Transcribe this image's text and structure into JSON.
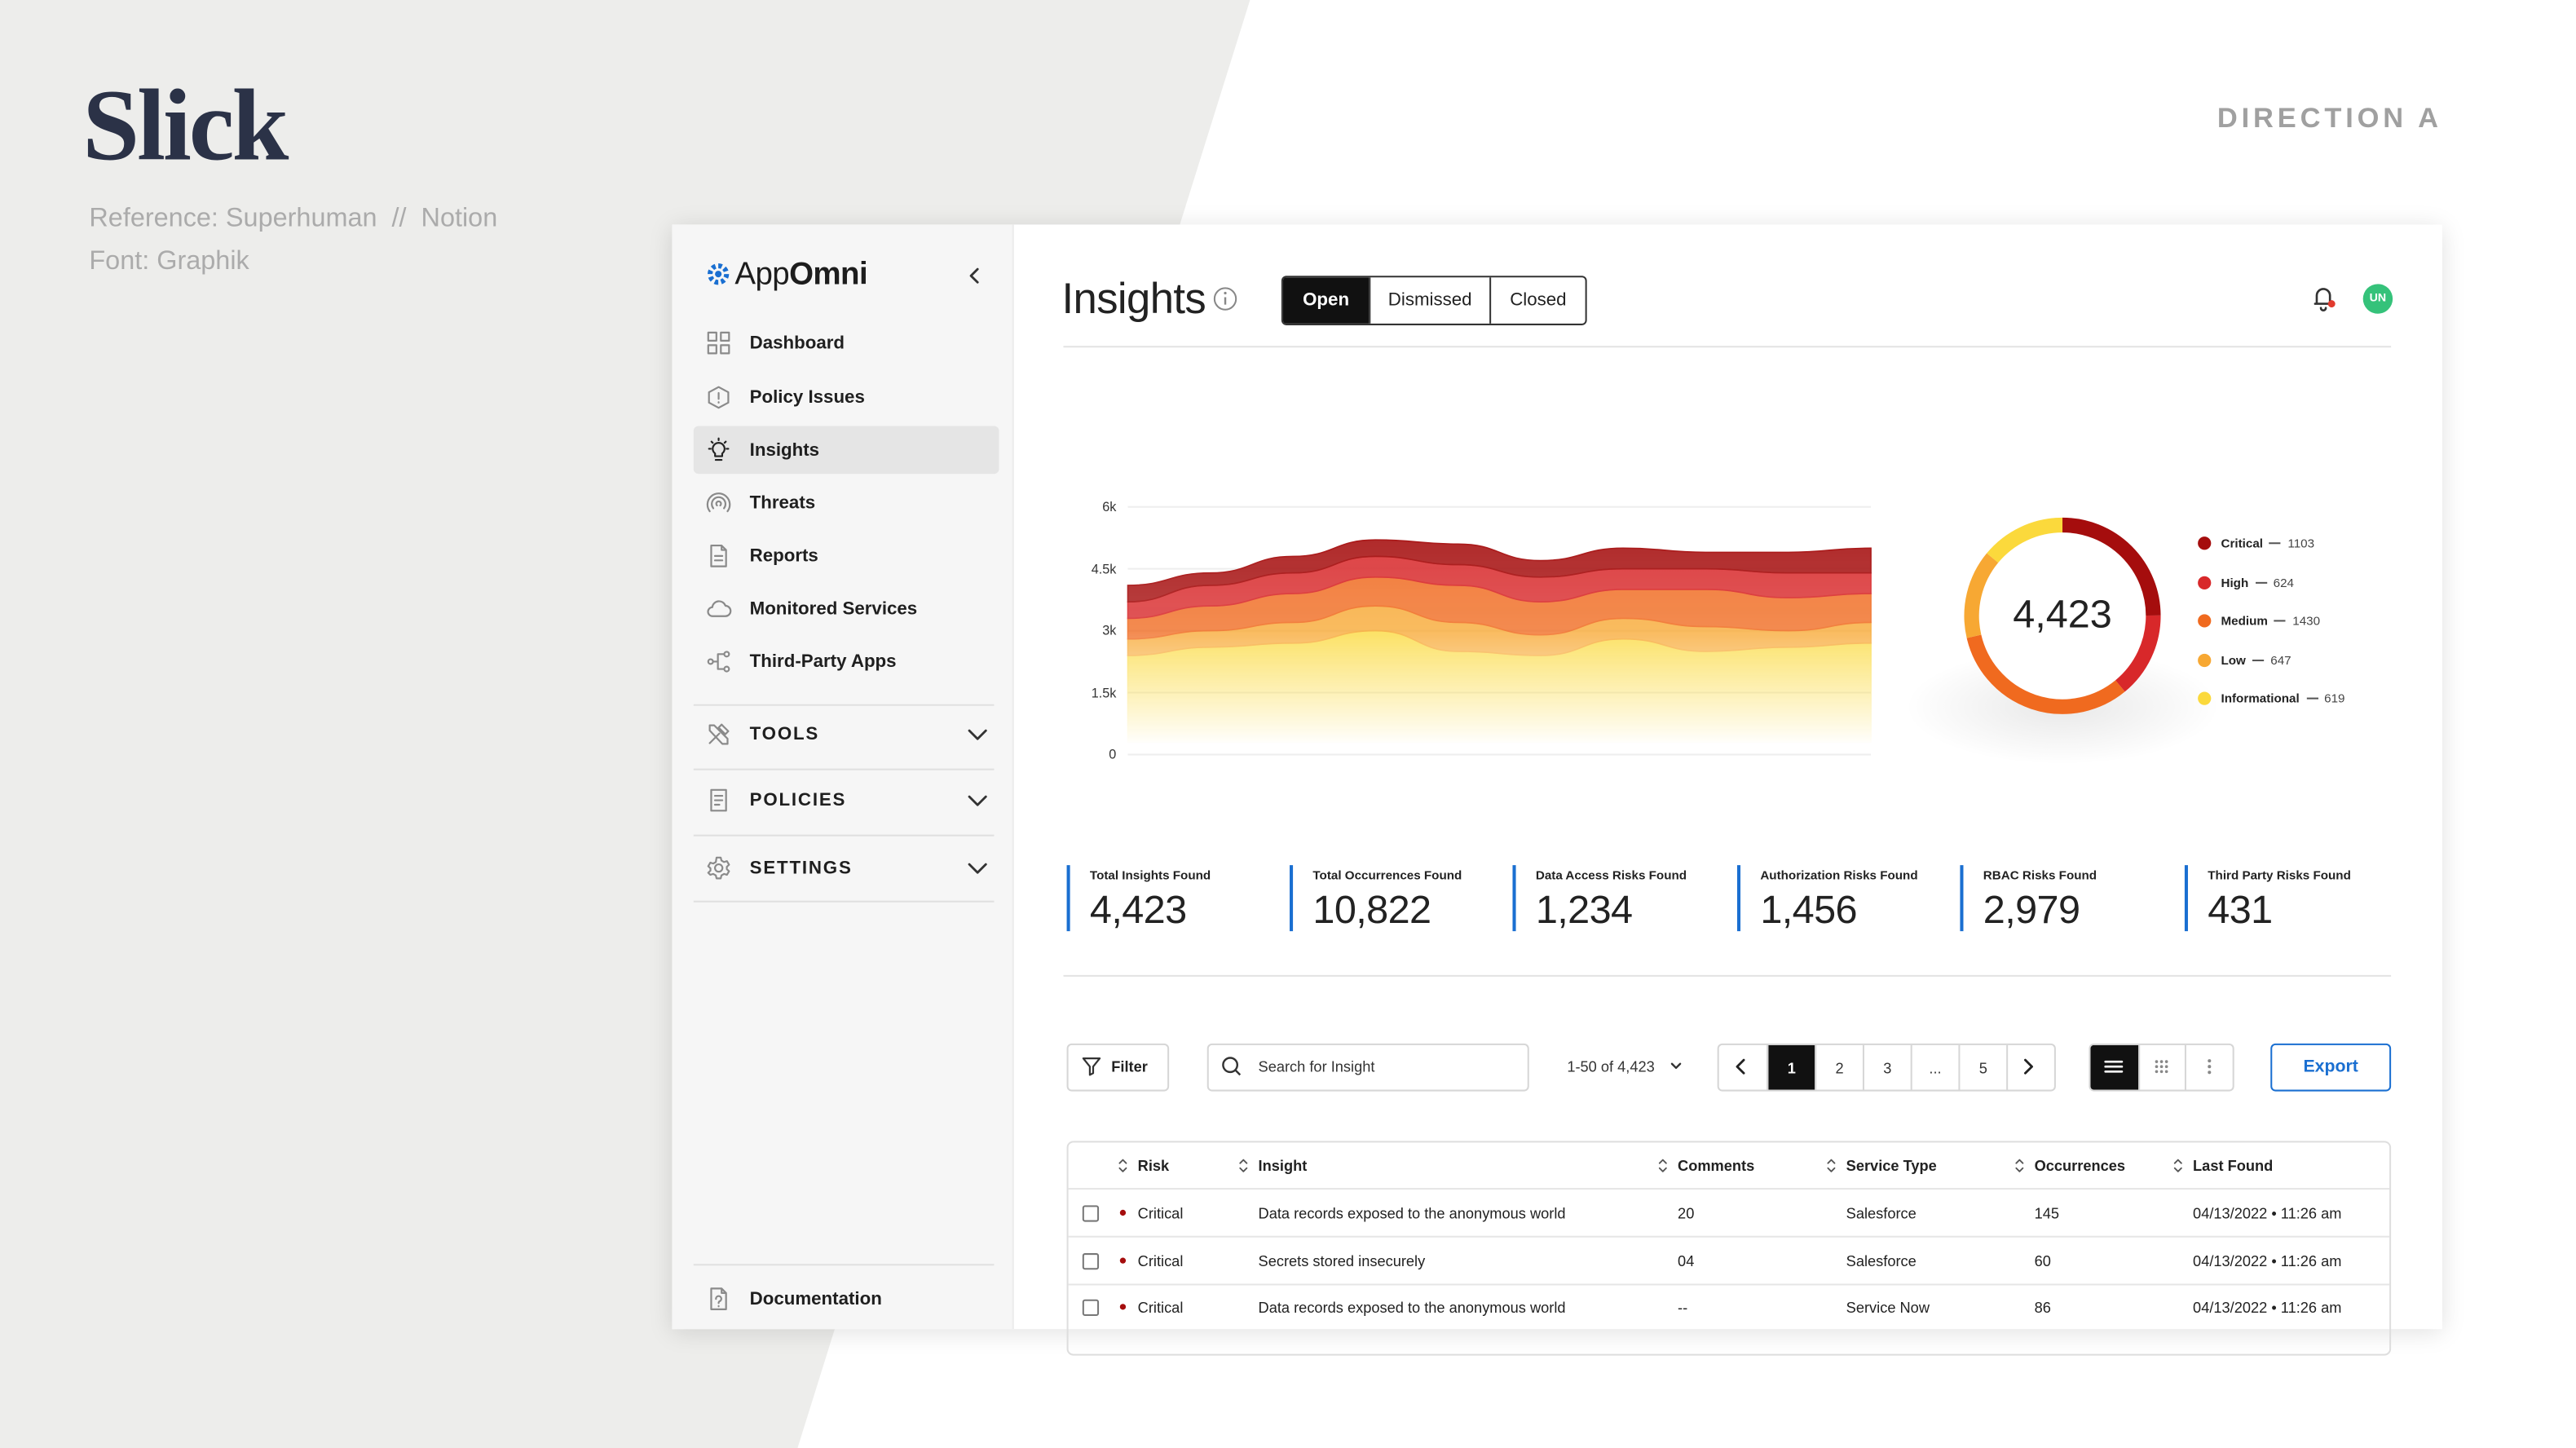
{
  "slide": {
    "title": "Slick",
    "reference": "Reference: Superhuman  //  Notion",
    "font": "Font: Graphik",
    "direction": "DIRECTION A"
  },
  "sidebar": {
    "logo_light": "App",
    "logo_bold": "Omni",
    "nav": [
      "Dashboard",
      "Policy Issues",
      "Insights",
      "Threats",
      "Reports",
      "Monitored Services",
      "Third-Party Apps"
    ],
    "active": 2,
    "sections": [
      "TOOLS",
      "POLICIES",
      "SETTINGS"
    ],
    "footer": "Documentation"
  },
  "header": {
    "title": "Insights",
    "tabs": [
      "Open",
      "Dismissed",
      "Closed"
    ],
    "active_tab": 0,
    "avatar": "UN"
  },
  "chart_data": [
    {
      "type": "area",
      "stacked": true,
      "categories": [
        null,
        null,
        null,
        null,
        null,
        null,
        null,
        null,
        null,
        null
      ],
      "series": [
        {
          "color": "#a50d0d",
          "values": [
            400,
            300,
            400,
            400,
            500,
            400,
            500,
            400,
            500,
            600
          ]
        },
        {
          "color": "#d8282a",
          "values": [
            400,
            500,
            500,
            500,
            500,
            600,
            500,
            500,
            600,
            500
          ]
        },
        {
          "color": "#f06a1f",
          "values": [
            500,
            600,
            700,
            700,
            900,
            800,
            700,
            900,
            800,
            700
          ]
        },
        {
          "color": "#f7a833",
          "values": [
            400,
            400,
            500,
            600,
            700,
            500,
            500,
            600,
            400,
            500
          ]
        },
        {
          "color": "#fbd93c",
          "values": [
            2400,
            2600,
            2700,
            3000,
            2500,
            2400,
            2800,
            2500,
            2600,
            2700
          ]
        }
      ],
      "ylim": [
        0,
        6000
      ],
      "yticks": [
        0,
        {
          "value": 1500,
          "label": "1.5k"
        },
        {
          "value": 3000,
          "label": "3k"
        },
        {
          "value": 4500,
          "label": "4.5k"
        },
        {
          "value": 6000,
          "label": "6k"
        }
      ],
      "grid": true
    },
    {
      "type": "donut",
      "categories": [
        "Critical",
        "High",
        "Medium",
        "Low",
        "Informational"
      ],
      "values": [
        1103,
        624,
        1430,
        647,
        619
      ],
      "colors": [
        "#a50d0d",
        "#d8282a",
        "#f06a1f",
        "#f7a833",
        "#fbd93c"
      ],
      "center_label": "4,423"
    }
  ],
  "stats": [
    {
      "label": "Total Insights Found",
      "value": "4,423"
    },
    {
      "label": "Total Occurrences Found",
      "value": "10,822"
    },
    {
      "label": "Data Access Risks Found",
      "value": "1,234"
    },
    {
      "label": "Authorization Risks Found",
      "value": "1,456"
    },
    {
      "label": "RBAC Risks Found",
      "value": "2,979"
    },
    {
      "label": "Third Party Risks Found",
      "value": "431"
    }
  ],
  "toolbar": {
    "filter": "Filter",
    "search": "Search for Insight",
    "range": "1-50 of 4,423",
    "pages": [
      "1",
      "2",
      "3",
      "...",
      "5"
    ],
    "active_page": 0,
    "export": "Export"
  },
  "table": {
    "columns": [
      "Risk",
      "Insight",
      "Comments",
      "Service Type",
      "Occurrences",
      "Last Found"
    ],
    "rows": [
      [
        "Critical",
        "Data records exposed to the anonymous world",
        "20",
        "Salesforce",
        "145",
        "04/13/2022 • 11:26 am"
      ],
      [
        "Critical",
        "Secrets stored insecurely",
        "04",
        "Salesforce",
        "60",
        "04/13/2022 • 11:26 am"
      ],
      [
        "Critical",
        "Data records exposed to the anonymous world",
        "--",
        "Service Now",
        "86",
        "04/13/2022 • 11:26 am"
      ]
    ]
  }
}
